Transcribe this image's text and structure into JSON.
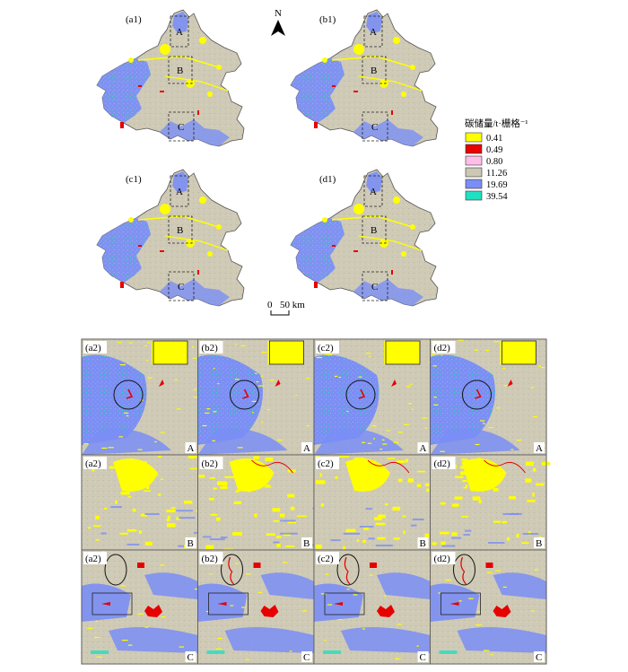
{
  "maps": [
    {
      "label": "(a1)"
    },
    {
      "label": "(b1)"
    },
    {
      "label": "(c1)"
    },
    {
      "label": "(d1)"
    }
  ],
  "region_boxes": [
    "A",
    "B",
    "C"
  ],
  "north_label": "N",
  "scale_bar": {
    "zero": "0",
    "distance": "50 km"
  },
  "legend": {
    "title": "碳储量/t·栅格⁻¹",
    "items": [
      {
        "value": "0.41",
        "color": "#ffff00"
      },
      {
        "value": "0.49",
        "color": "#e60000"
      },
      {
        "value": "0.80",
        "color": "#ffbee8"
      },
      {
        "value": "11.26",
        "color": "#cdc8b4"
      },
      {
        "value": "19.69",
        "color": "#7a8ef5"
      },
      {
        "value": "39.54",
        "color": "#1fe0c0"
      }
    ]
  },
  "zoom_grid": {
    "rows": [
      {
        "region": "A",
        "tiles": [
          "(a2)",
          "(b2)",
          "(c2)",
          "(d2)"
        ]
      },
      {
        "region": "B",
        "tiles": [
          "(a2)",
          "(b2)",
          "(c2)",
          "(d2)"
        ]
      },
      {
        "region": "C",
        "tiles": [
          "(a2)",
          "(b2)",
          "(c2)",
          "(d2)"
        ]
      }
    ]
  }
}
